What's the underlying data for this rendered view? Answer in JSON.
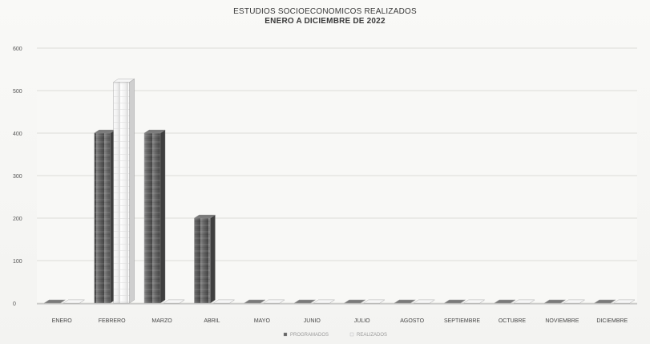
{
  "chart_data": {
    "type": "bar",
    "title": "ESTUDIOS SOCIOECONOMICOS REALIZADOS",
    "subtitle": "ENERO A DICIEMBRE DE 2022",
    "categories": [
      "ENERO",
      "FEBRERO",
      "MARZO",
      "ABRIL",
      "MAYO",
      "JUNIO",
      "JULIO",
      "AGOSTO",
      "SEPTIEMBRE",
      "OCTUBRE",
      "NOVIEMBRE",
      "DICIEMBRE"
    ],
    "series": [
      {
        "name": "PROGRAMADOS",
        "values": [
          0,
          400,
          400,
          200,
          0,
          0,
          0,
          0,
          0,
          0,
          0,
          0
        ],
        "color": "#5f5f5f"
      },
      {
        "name": "REALIZADOS",
        "values": [
          0,
          520,
          0,
          0,
          0,
          0,
          0,
          0,
          0,
          0,
          0,
          0
        ],
        "color": "#efefef"
      }
    ],
    "ylim": [
      0,
      600
    ],
    "yticks": [
      0,
      100,
      200,
      300,
      400,
      500,
      600
    ],
    "grid": true,
    "legend_position": "bottom",
    "style": "3d-column"
  }
}
